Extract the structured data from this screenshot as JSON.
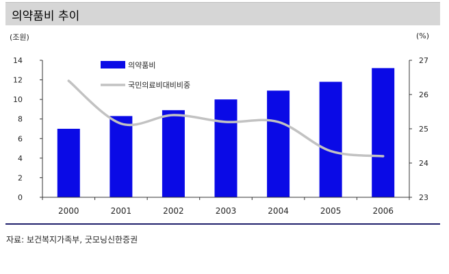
{
  "title": "의약품비 추이",
  "unit_left": "(조원)",
  "unit_right": "(%)",
  "source": "자료: 보건복지가족부, 굿모닝신한증권",
  "colors": {
    "bar": "#0a0ae6",
    "line": "#c2c2c2",
    "axis": "#333333",
    "rule": "#1f1f6b"
  },
  "chart_data": {
    "type": "bar",
    "categories": [
      "2000",
      "2001",
      "2002",
      "2003",
      "2004",
      "2005",
      "2006"
    ],
    "series": [
      {
        "name": "의약품비",
        "type": "bar",
        "axis": "left",
        "values": [
          7.0,
          8.3,
          8.9,
          10.0,
          10.9,
          11.8,
          13.2
        ]
      },
      {
        "name": "국민의료비대비비중",
        "type": "line",
        "axis": "right",
        "values": [
          26.4,
          25.15,
          25.4,
          25.2,
          25.2,
          24.35,
          24.2
        ]
      }
    ],
    "ylim_left": [
      0,
      14
    ],
    "yticks_left": [
      0,
      2,
      4,
      6,
      8,
      10,
      12,
      14
    ],
    "ylim_right": [
      23,
      27
    ],
    "yticks_right": [
      23,
      24,
      25,
      26,
      27
    ],
    "grid": false,
    "legend_position": "top-left"
  }
}
